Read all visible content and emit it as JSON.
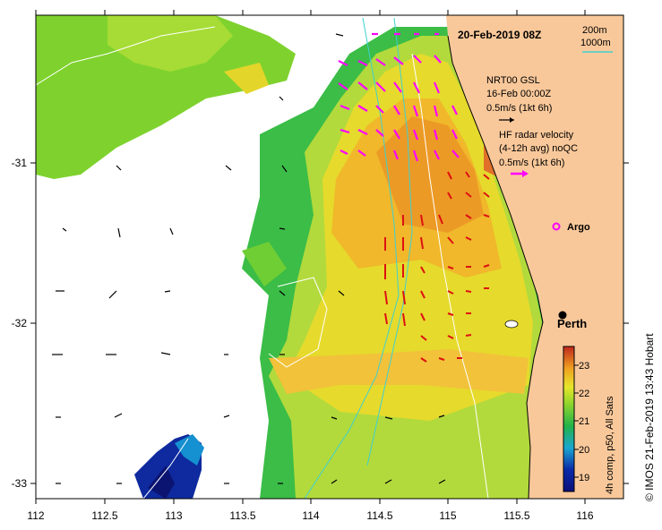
{
  "title": "20-Feb-2019 08Z",
  "contour_legend": {
    "depth_1": "200m",
    "depth_2": "1000m",
    "line_color": "#3fd0d0"
  },
  "gsl_legend": {
    "line1": "NRT00 GSL",
    "line2": "16-Feb 00:00Z",
    "line3": "0.5m/s (1kt 6h)"
  },
  "hf_legend": {
    "line1": "HF radar velocity",
    "line2": "(4-12h avg) noQC",
    "line3": "0.5m/s (1kt 6h)",
    "arrow_color": "#ff00ff"
  },
  "argo": {
    "label": "Argo",
    "color": "#ff00ff"
  },
  "city": {
    "label": "Perth"
  },
  "x_axis": {
    "ticks": [
      "112",
      "112.5",
      "113",
      "113.5",
      "114",
      "114.5",
      "115",
      "115.5",
      "116"
    ]
  },
  "y_axis": {
    "ticks": [
      "-31",
      "-32",
      "-33"
    ]
  },
  "colorbar": {
    "label": "4h comp, p50, All Sats",
    "ticks": [
      "23",
      "22",
      "21",
      "20",
      "19"
    ],
    "min": 18.5,
    "max": 23.6
  },
  "credit": "© IMOS 21-Feb-2019 13:43 Hobart",
  "colors": {
    "land": "#f9c89a",
    "ocean_no_data": "#ffffff"
  }
}
